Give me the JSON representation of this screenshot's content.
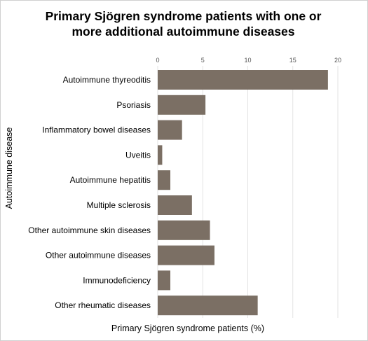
{
  "chart_data": {
    "type": "bar",
    "orientation": "horizontal",
    "title_lines": [
      "Primary Sjögren syndrome patients with one or",
      "more additional autoimmune diseases"
    ],
    "xlabel": "Primary Sjögren syndrome patients (%)",
    "ylabel": "Autoimmune disease",
    "xlim": [
      0,
      20
    ],
    "xticks": [
      "0",
      "5",
      "10",
      "15",
      "20"
    ],
    "x_axis_position": "top",
    "grid": "vertical",
    "categories": [
      "Autoimmune thyreoditis",
      "Psoriasis",
      "Inflammatory bowel diseases",
      "Uveitis",
      "Autoimmune hepatitis",
      "Multiple sclerosis",
      "Other autoimmune skin diseases",
      "Other autoimmune diseases",
      "Immunodeficiency",
      "Other rheumatic diseases"
    ],
    "values": [
      18.9,
      5.3,
      2.7,
      0.5,
      1.4,
      3.8,
      5.8,
      6.3,
      1.4,
      11.1
    ],
    "colors": {
      "bar": "#7b6f64",
      "grid": "#e3e3e3",
      "tick_text": "#555555"
    }
  }
}
